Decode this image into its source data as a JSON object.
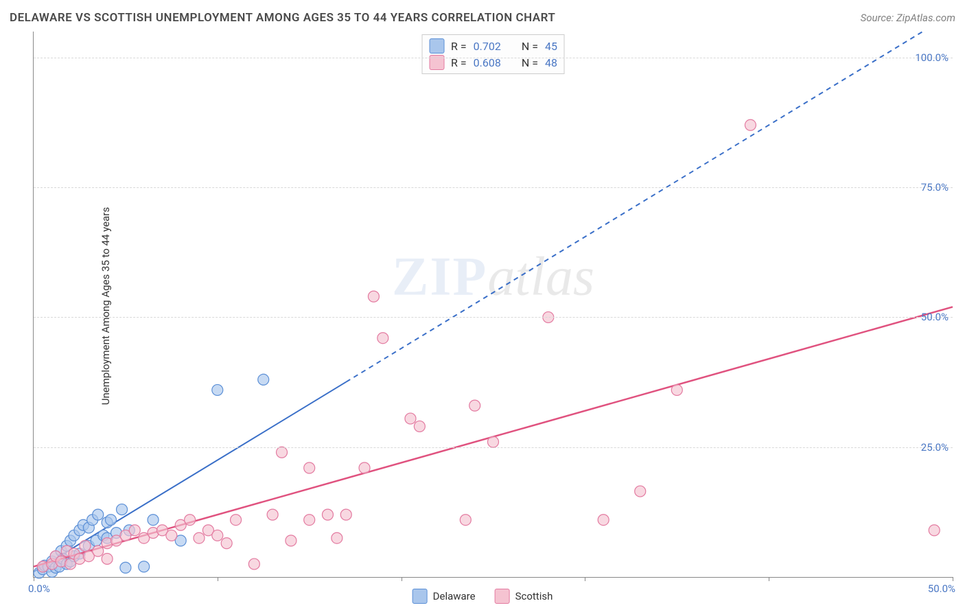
{
  "header": {
    "title": "DELAWARE VS SCOTTISH UNEMPLOYMENT AMONG AGES 35 TO 44 YEARS CORRELATION CHART",
    "source": "Source: ZipAtlas.com"
  },
  "ylabel": "Unemployment Among Ages 35 to 44 years",
  "chart": {
    "type": "scatter",
    "xlim": [
      0,
      50
    ],
    "ylim": [
      0,
      105
    ],
    "y_ticks": [
      25,
      50,
      75,
      100
    ],
    "y_tick_labels": [
      "25.0%",
      "50.0%",
      "75.0%",
      "100.0%"
    ],
    "x_ticks": [
      0,
      10,
      20,
      30,
      40,
      50
    ],
    "x_origin_label": "0.0%",
    "x_max_label": "50.0%",
    "background_color": "#ffffff",
    "grid_color": "#d8d8d8",
    "marker_radius": 8,
    "series": [
      {
        "name": "Delaware",
        "color_fill": "#a9c6ec",
        "color_stroke": "#5b8fd6",
        "R": "0.702",
        "N": "45",
        "trend": {
          "slope": 2.15,
          "intercept": 1.0,
          "solid_until_x": 17,
          "dashed": true,
          "color": "#3a6fc8",
          "width": 2
        },
        "points": [
          [
            0.3,
            0.8
          ],
          [
            0.5,
            1.5
          ],
          [
            0.6,
            2.2
          ],
          [
            0.8,
            2.0
          ],
          [
            1.0,
            1.0
          ],
          [
            1.0,
            3.0
          ],
          [
            1.2,
            1.8
          ],
          [
            1.2,
            4.0
          ],
          [
            1.4,
            2.0
          ],
          [
            1.5,
            5.0
          ],
          [
            1.6,
            3.5
          ],
          [
            1.8,
            2.5
          ],
          [
            1.8,
            6.0
          ],
          [
            2.0,
            3.0
          ],
          [
            2.0,
            7.0
          ],
          [
            2.2,
            4.0
          ],
          [
            2.2,
            8.0
          ],
          [
            2.5,
            9.0
          ],
          [
            2.5,
            4.5
          ],
          [
            2.7,
            10.0
          ],
          [
            3.0,
            6.0
          ],
          [
            3.0,
            9.5
          ],
          [
            3.2,
            11.0
          ],
          [
            3.4,
            7.0
          ],
          [
            3.5,
            12.0
          ],
          [
            3.8,
            8.0
          ],
          [
            4.0,
            7.5
          ],
          [
            4.0,
            10.5
          ],
          [
            4.2,
            11.0
          ],
          [
            4.5,
            8.5
          ],
          [
            4.8,
            13.0
          ],
          [
            5.0,
            1.8
          ],
          [
            5.2,
            9.0
          ],
          [
            6.0,
            2.0
          ],
          [
            6.5,
            11.0
          ],
          [
            8.0,
            7.0
          ],
          [
            10.0,
            36.0
          ],
          [
            12.5,
            38.0
          ]
        ]
      },
      {
        "name": "Scottish",
        "color_fill": "#f5c3d1",
        "color_stroke": "#e37aa0",
        "R": "0.608",
        "N": "48",
        "trend": {
          "slope": 1.0,
          "intercept": 2.0,
          "solid_until_x": 50,
          "dashed": false,
          "color": "#e0527f",
          "width": 2.5
        },
        "points": [
          [
            0.5,
            2.0
          ],
          [
            1.0,
            2.5
          ],
          [
            1.2,
            4.0
          ],
          [
            1.5,
            3.0
          ],
          [
            1.8,
            5.0
          ],
          [
            2.0,
            2.5
          ],
          [
            2.2,
            4.5
          ],
          [
            2.5,
            3.5
          ],
          [
            2.8,
            6.0
          ],
          [
            3.0,
            4.0
          ],
          [
            3.5,
            5.0
          ],
          [
            4.0,
            6.5
          ],
          [
            4.0,
            3.5
          ],
          [
            4.5,
            7.0
          ],
          [
            5.0,
            8.0
          ],
          [
            5.5,
            9.0
          ],
          [
            6.0,
            7.5
          ],
          [
            6.5,
            8.5
          ],
          [
            7.0,
            9.0
          ],
          [
            7.5,
            8.0
          ],
          [
            8.0,
            10.0
          ],
          [
            8.5,
            11.0
          ],
          [
            9.0,
            7.5
          ],
          [
            9.5,
            9.0
          ],
          [
            10.0,
            8.0
          ],
          [
            10.5,
            6.5
          ],
          [
            11.0,
            11.0
          ],
          [
            12.0,
            2.5
          ],
          [
            13.0,
            12.0
          ],
          [
            13.5,
            24.0
          ],
          [
            14.0,
            7.0
          ],
          [
            15.0,
            11.0
          ],
          [
            15.0,
            21.0
          ],
          [
            16.0,
            12.0
          ],
          [
            16.5,
            7.5
          ],
          [
            17.0,
            12.0
          ],
          [
            18.0,
            21.0
          ],
          [
            18.5,
            54.0
          ],
          [
            19.0,
            46.0
          ],
          [
            20.5,
            30.5
          ],
          [
            21.0,
            29.0
          ],
          [
            23.5,
            11.0
          ],
          [
            24.0,
            33.0
          ],
          [
            25.0,
            26.0
          ],
          [
            28.0,
            50.0
          ],
          [
            31.0,
            11.0
          ],
          [
            33.0,
            16.5
          ],
          [
            35.0,
            36.0
          ],
          [
            39.0,
            87.0
          ],
          [
            49.0,
            9.0
          ]
        ]
      }
    ]
  },
  "legend": {
    "items": [
      {
        "label": "Delaware",
        "fill": "#a9c6ec",
        "stroke": "#5b8fd6"
      },
      {
        "label": "Scottish",
        "fill": "#f5c3d1",
        "stroke": "#e37aa0"
      }
    ]
  },
  "watermark": {
    "a": "ZIP",
    "b": "atlas"
  }
}
